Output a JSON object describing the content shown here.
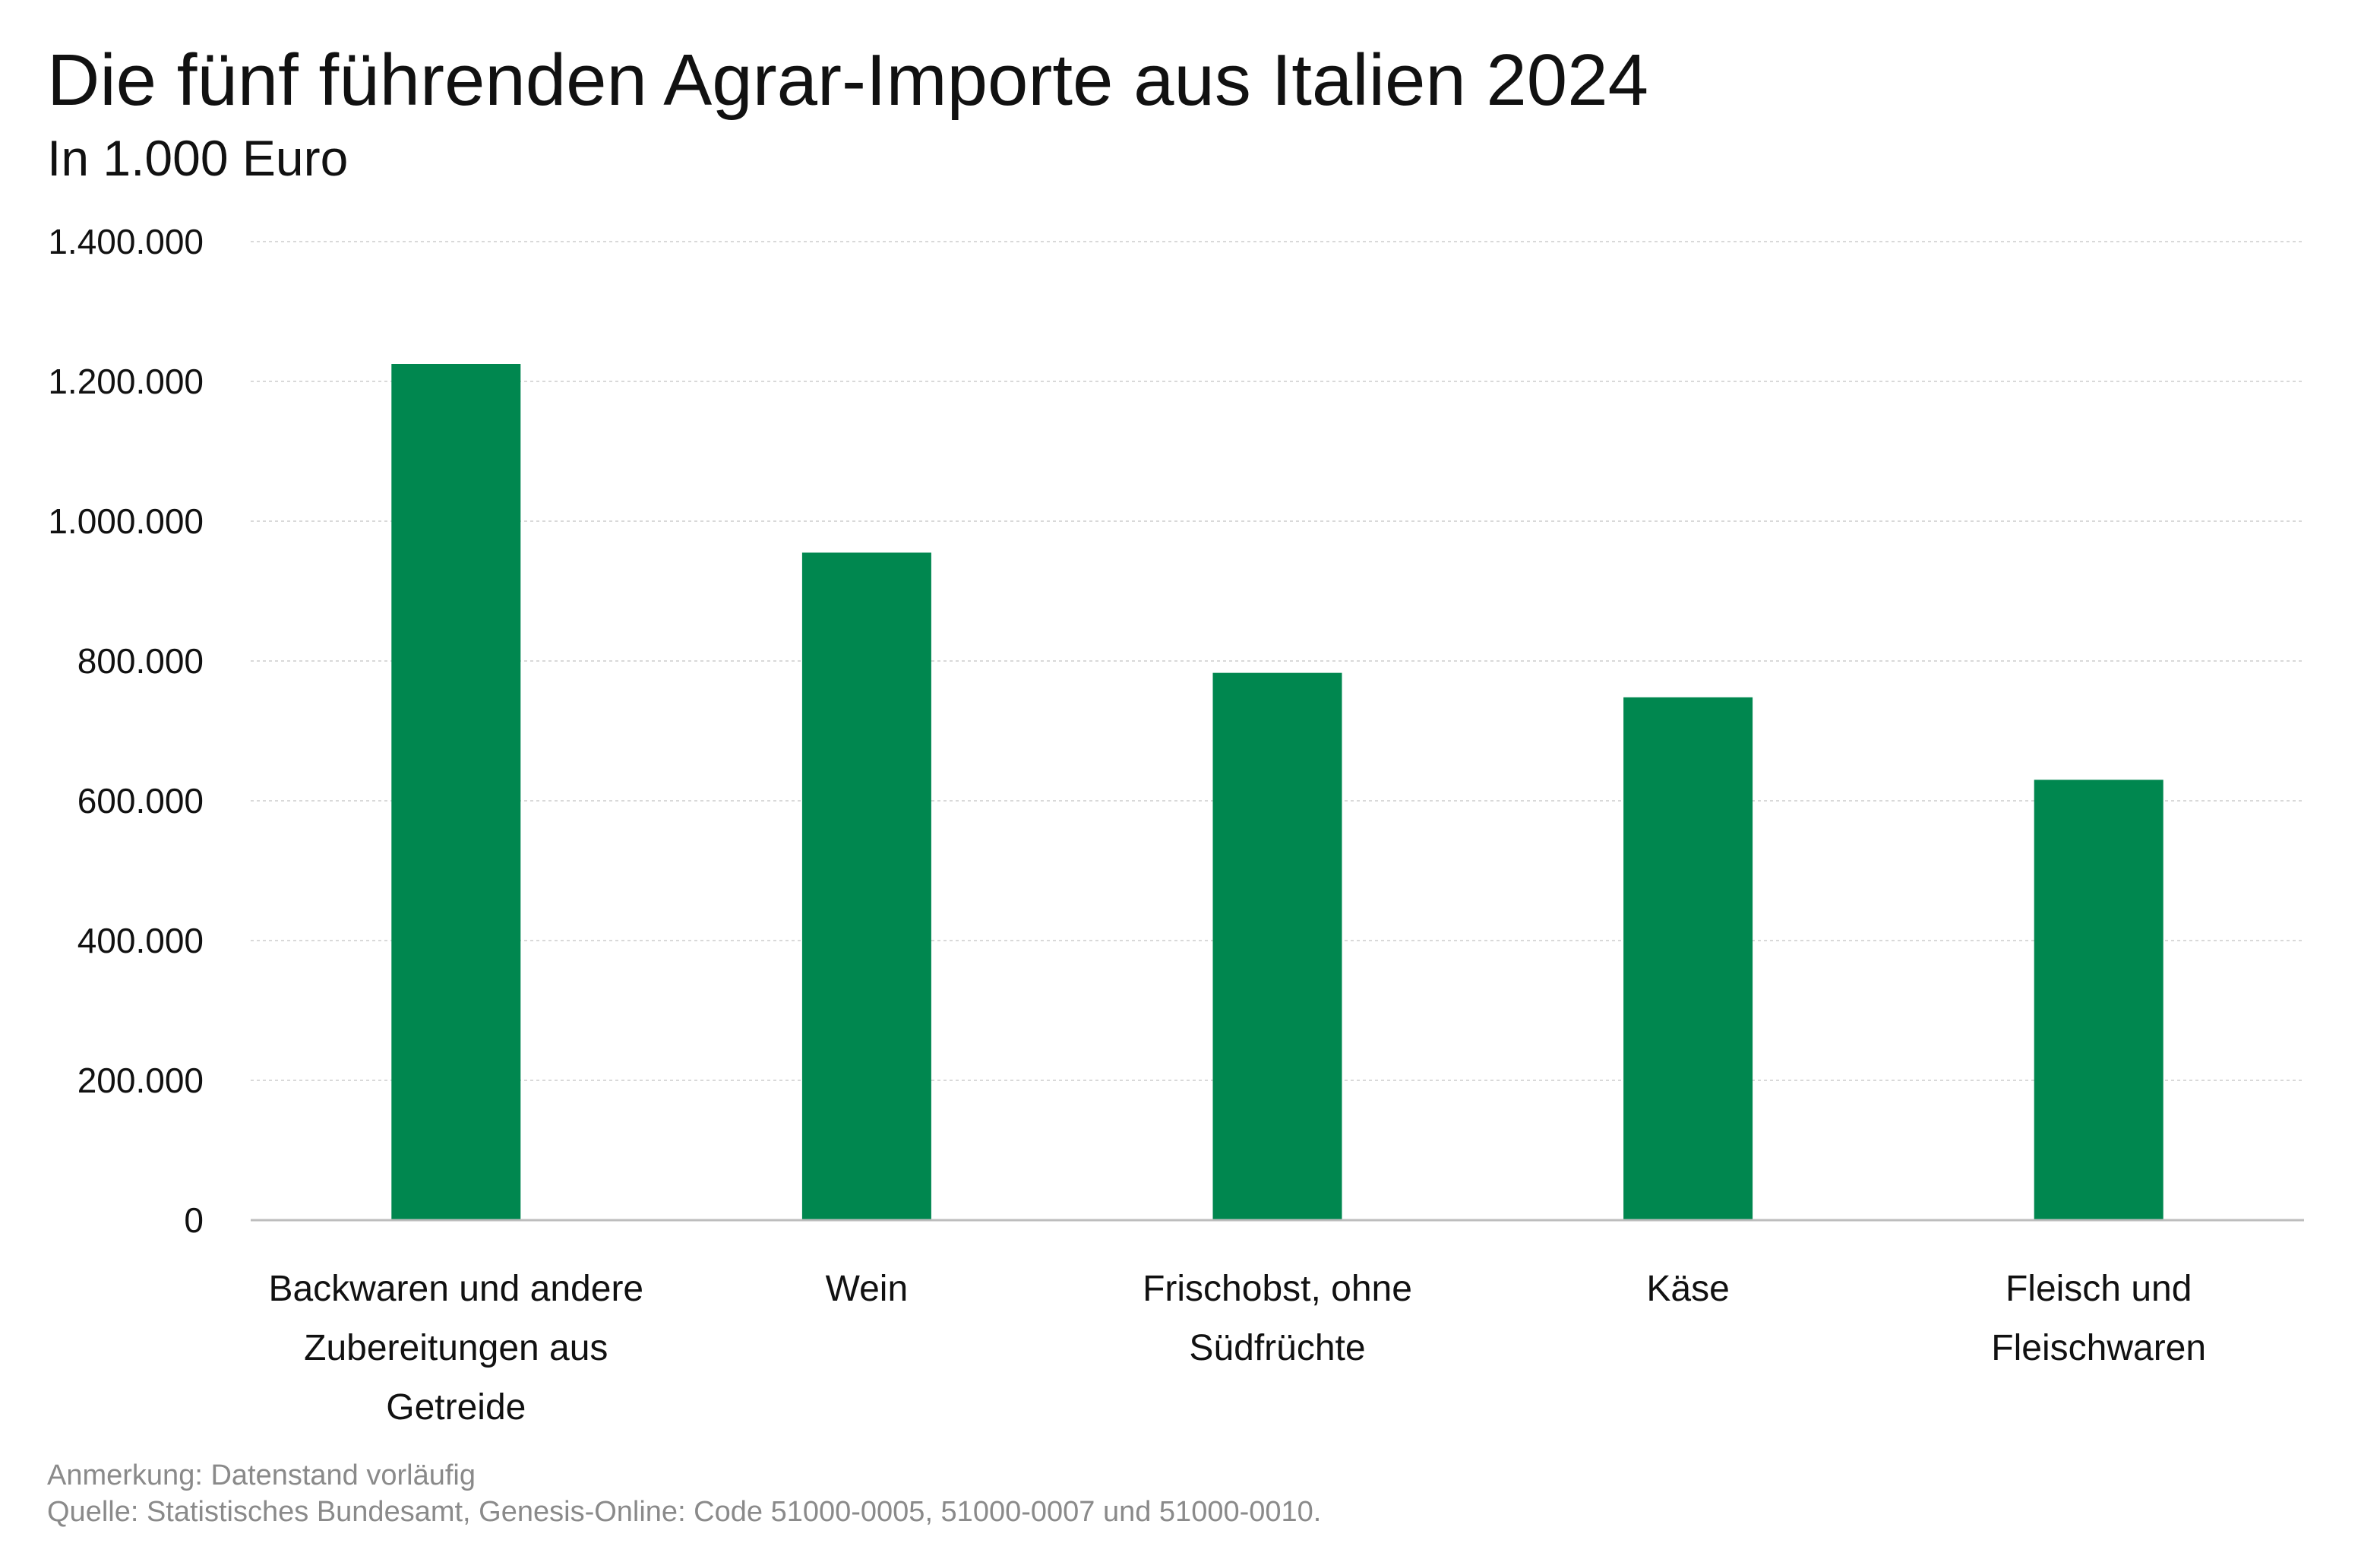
{
  "chart_data": {
    "type": "bar",
    "title": "Die fünf führenden Agrar-Importe aus Italien 2024",
    "subtitle": "In 1.000 Euro",
    "categories": [
      [
        "Backwaren und andere",
        "Zubereitungen aus",
        "Getreide"
      ],
      [
        "Wein"
      ],
      [
        "Frischobst, ohne",
        "Südfrüchte"
      ],
      [
        "Käse"
      ],
      [
        "Fleisch und",
        "Fleischwaren"
      ]
    ],
    "values": [
      1225000,
      955000,
      783000,
      748000,
      630000
    ],
    "xlabel": "",
    "ylabel": "",
    "ylim": [
      0,
      1400000
    ],
    "yticks": [
      0,
      200000,
      400000,
      600000,
      800000,
      1000000,
      1200000,
      1400000
    ],
    "ytick_labels": [
      "0",
      "200.000",
      "400.000",
      "600.000",
      "800.000",
      "1.000.000",
      "1.200.000",
      "1.400.000"
    ],
    "grid": true,
    "bar_color": "#00874F",
    "grid_color": "#d9d9d9",
    "axis_color": "#bdbdbd"
  },
  "footer": {
    "note": "Anmerkung: Datenstand vorläufig",
    "source": "Quelle: Statistisches Bundesamt, Genesis-Online: Code 51000-0005, 51000-0007 und 51000-0010."
  }
}
